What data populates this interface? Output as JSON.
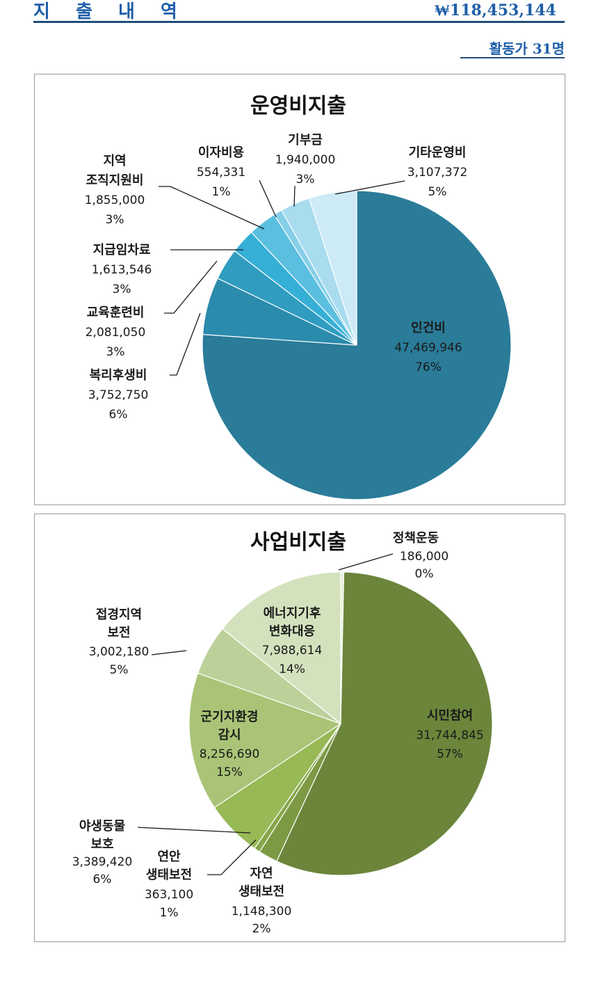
{
  "header": {
    "title": "지 출 내 역",
    "total": "₩118,453,144",
    "activists": "활동가 31명"
  },
  "chart_data": [
    {
      "type": "pie",
      "title": "운영비지출",
      "slices": [
        {
          "name": "인건비",
          "value": 47469946,
          "value_label": "47,469,946",
          "percent": "76%",
          "color": "#2a7c99"
        },
        {
          "name": "복리후생비",
          "value": 3752750,
          "value_label": "3,752,750",
          "percent": "6%",
          "color": "#2b8bad"
        },
        {
          "name": "교육훈련비",
          "value": 2081050,
          "value_label": "2,081,050",
          "percent": "3%",
          "color": "#2f9cc0"
        },
        {
          "name": "지급임차료",
          "value": 1613546,
          "value_label": "1,613,546",
          "percent": "3%",
          "color": "#36afd6"
        },
        {
          "name": "지역 조직지원비",
          "value": 1855000,
          "value_label": "1,855,000",
          "percent": "3%",
          "color": "#5bbfe0"
        },
        {
          "name": "이자비용",
          "value": 554331,
          "value_label": "554,331",
          "percent": "1%",
          "color": "#86cfe8"
        },
        {
          "name": "기부금",
          "value": 1940000,
          "value_label": "1,940,000",
          "percent": "3%",
          "color": "#a9dcef"
        },
        {
          "name": "기타운영비",
          "value": 3107372,
          "value_label": "3,107,372",
          "percent": "5%",
          "color": "#cdebf6"
        }
      ]
    },
    {
      "type": "pie",
      "title": "사업비지출",
      "slices": [
        {
          "name": "정책운동",
          "value": 186000,
          "value_label": "186,000",
          "percent": "0%",
          "color": "#e6efd6"
        },
        {
          "name": "시민참여",
          "value": 31744845,
          "value_label": "31,744,845",
          "percent": "57%",
          "color": "#6b853b"
        },
        {
          "name": "자연 생태보전",
          "value": 1148300,
          "value_label": "1,148,300",
          "percent": "2%",
          "color": "#7c9a44"
        },
        {
          "name": "연안 생태보전",
          "value": 363100,
          "value_label": "363,100",
          "percent": "1%",
          "color": "#86a74a"
        },
        {
          "name": "야생동물 보호",
          "value": 3389420,
          "value_label": "3,389,420",
          "percent": "6%",
          "color": "#97b956"
        },
        {
          "name": "군기지환경 감시",
          "value": 8256690,
          "value_label": "8,256,690",
          "percent": "15%",
          "color": "#a9c477"
        },
        {
          "name": "접경지역 보전",
          "value": 3002180,
          "value_label": "3,002,180",
          "percent": "5%",
          "color": "#bcd19a"
        },
        {
          "name": "에너지기후 변화대응",
          "value": 7988614,
          "value_label": "7,988,614",
          "percent": "14%",
          "color": "#d3e2bd"
        }
      ]
    }
  ]
}
